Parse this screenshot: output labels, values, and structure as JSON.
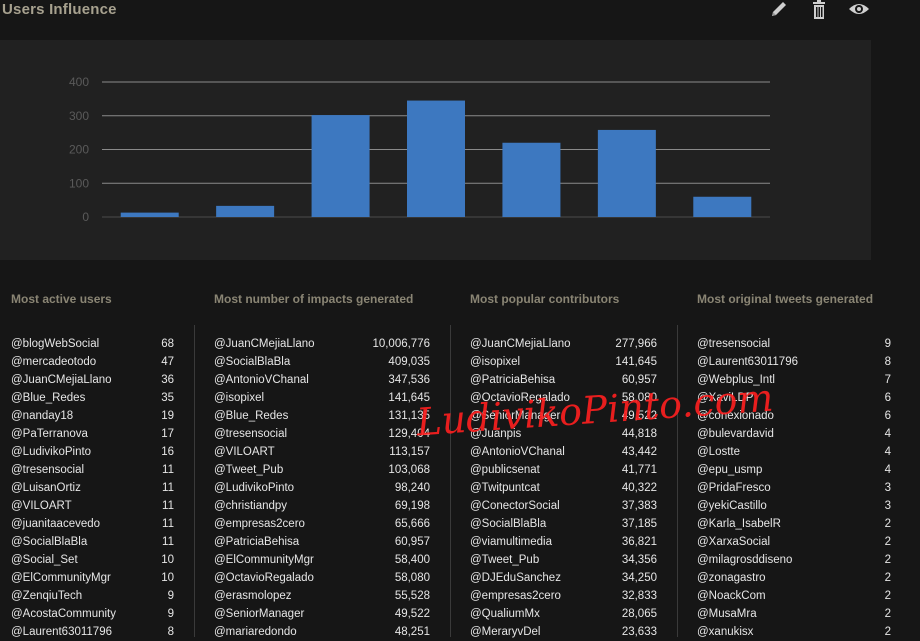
{
  "header": {
    "title": "Users Influence",
    "icons": [
      "pencil-icon",
      "trash-icon",
      "eye-icon"
    ]
  },
  "chart_data": {
    "type": "bar",
    "values": [
      13,
      33,
      302,
      345,
      220,
      258,
      60
    ],
    "ylim": [
      0,
      400
    ],
    "yticks": [
      "0",
      "100",
      "200",
      "300",
      "400"
    ],
    "grid": true,
    "bar_color": "#3d78c0"
  },
  "columns": [
    {
      "title": "Most active users",
      "rows": [
        [
          "@blogWebSocial",
          "68"
        ],
        [
          "@mercadeotodo",
          "47"
        ],
        [
          "@JuanCMejiaLlano",
          "36"
        ],
        [
          "@Blue_Redes",
          "35"
        ],
        [
          "@nanday18",
          "19"
        ],
        [
          "@PaTerranova",
          "17"
        ],
        [
          "@LudivikoPinto",
          "16"
        ],
        [
          "@tresensocial",
          "11"
        ],
        [
          "@LuisanOrtiz",
          "11"
        ],
        [
          "@VILOART",
          "11"
        ],
        [
          "@juanitaacevedo",
          "11"
        ],
        [
          "@SocialBlaBla",
          "11"
        ],
        [
          "@Social_Set",
          "10"
        ],
        [
          "@ElCommunityMgr",
          "10"
        ],
        [
          "@ZenqiuTech",
          "9"
        ],
        [
          "@AcostaCommunity",
          "9"
        ],
        [
          "@Laurent63011796",
          "8"
        ]
      ]
    },
    {
      "title": "Most number of impacts generated",
      "rows": [
        [
          "@JuanCMejiaLlano",
          "10,006,776"
        ],
        [
          "@SocialBlaBla",
          "409,035"
        ],
        [
          "@AntonioVChanal",
          "347,536"
        ],
        [
          "@isopixel",
          "141,645"
        ],
        [
          "@Blue_Redes",
          "131,135"
        ],
        [
          "@tresensocial",
          "129,404"
        ],
        [
          "@VILOART",
          "113,157"
        ],
        [
          "@Tweet_Pub",
          "103,068"
        ],
        [
          "@LudivikoPinto",
          "98,240"
        ],
        [
          "@christiandpy",
          "69,198"
        ],
        [
          "@empresas2cero",
          "65,666"
        ],
        [
          "@PatriciaBehisa",
          "60,957"
        ],
        [
          "@ElCommunityMgr",
          "58,400"
        ],
        [
          "@OctavioRegalado",
          "58,080"
        ],
        [
          "@erasmolopez",
          "55,528"
        ],
        [
          "@SeniorManager",
          "49,522"
        ],
        [
          "@mariaredondo",
          "48,251"
        ]
      ]
    },
    {
      "title": "Most popular contributors",
      "rows": [
        [
          "@JuanCMejiaLlano",
          "277,966"
        ],
        [
          "@isopixel",
          "141,645"
        ],
        [
          "@PatriciaBehisa",
          "60,957"
        ],
        [
          "@OctavioRegalado",
          "58,080"
        ],
        [
          "@SeniorManager",
          "49,522"
        ],
        [
          "@Juanpis",
          "44,818"
        ],
        [
          "@AntonioVChanal",
          "43,442"
        ],
        [
          "@publicsenat",
          "41,771"
        ],
        [
          "@Twitpuntcat",
          "40,322"
        ],
        [
          "@ConectorSocial",
          "37,383"
        ],
        [
          "@SocialBlaBla",
          "37,185"
        ],
        [
          "@viamultimedia",
          "36,821"
        ],
        [
          "@Tweet_Pub",
          "34,356"
        ],
        [
          "@DJEduSanchez",
          "34,250"
        ],
        [
          "@empresas2cero",
          "32,833"
        ],
        [
          "@QualiumMx",
          "28,065"
        ],
        [
          "@MeraryvDel",
          "23,633"
        ]
      ]
    },
    {
      "title": "Most original tweets generated",
      "rows": [
        [
          "@tresensocial",
          "9"
        ],
        [
          "@Laurent63011796",
          "8"
        ],
        [
          "@Webplus_Intl",
          "7"
        ],
        [
          "@XaviLDP",
          "6"
        ],
        [
          "@conexionado",
          "6"
        ],
        [
          "@bulevardavid",
          "4"
        ],
        [
          "@Lostte",
          "4"
        ],
        [
          "@epu_usmp",
          "4"
        ],
        [
          "@PridaFresco",
          "3"
        ],
        [
          "@yekiCastillo",
          "3"
        ],
        [
          "@Karla_IsabelR",
          "2"
        ],
        [
          "@XarxaSocial",
          "2"
        ],
        [
          "@milagrosddiseno",
          "2"
        ],
        [
          "@zonagastro",
          "2"
        ],
        [
          "@NoackCom",
          "2"
        ],
        [
          "@MusaMra",
          "2"
        ],
        [
          "@xanukisx",
          "2"
        ]
      ]
    }
  ],
  "watermark": "LudivikoPinto.com"
}
